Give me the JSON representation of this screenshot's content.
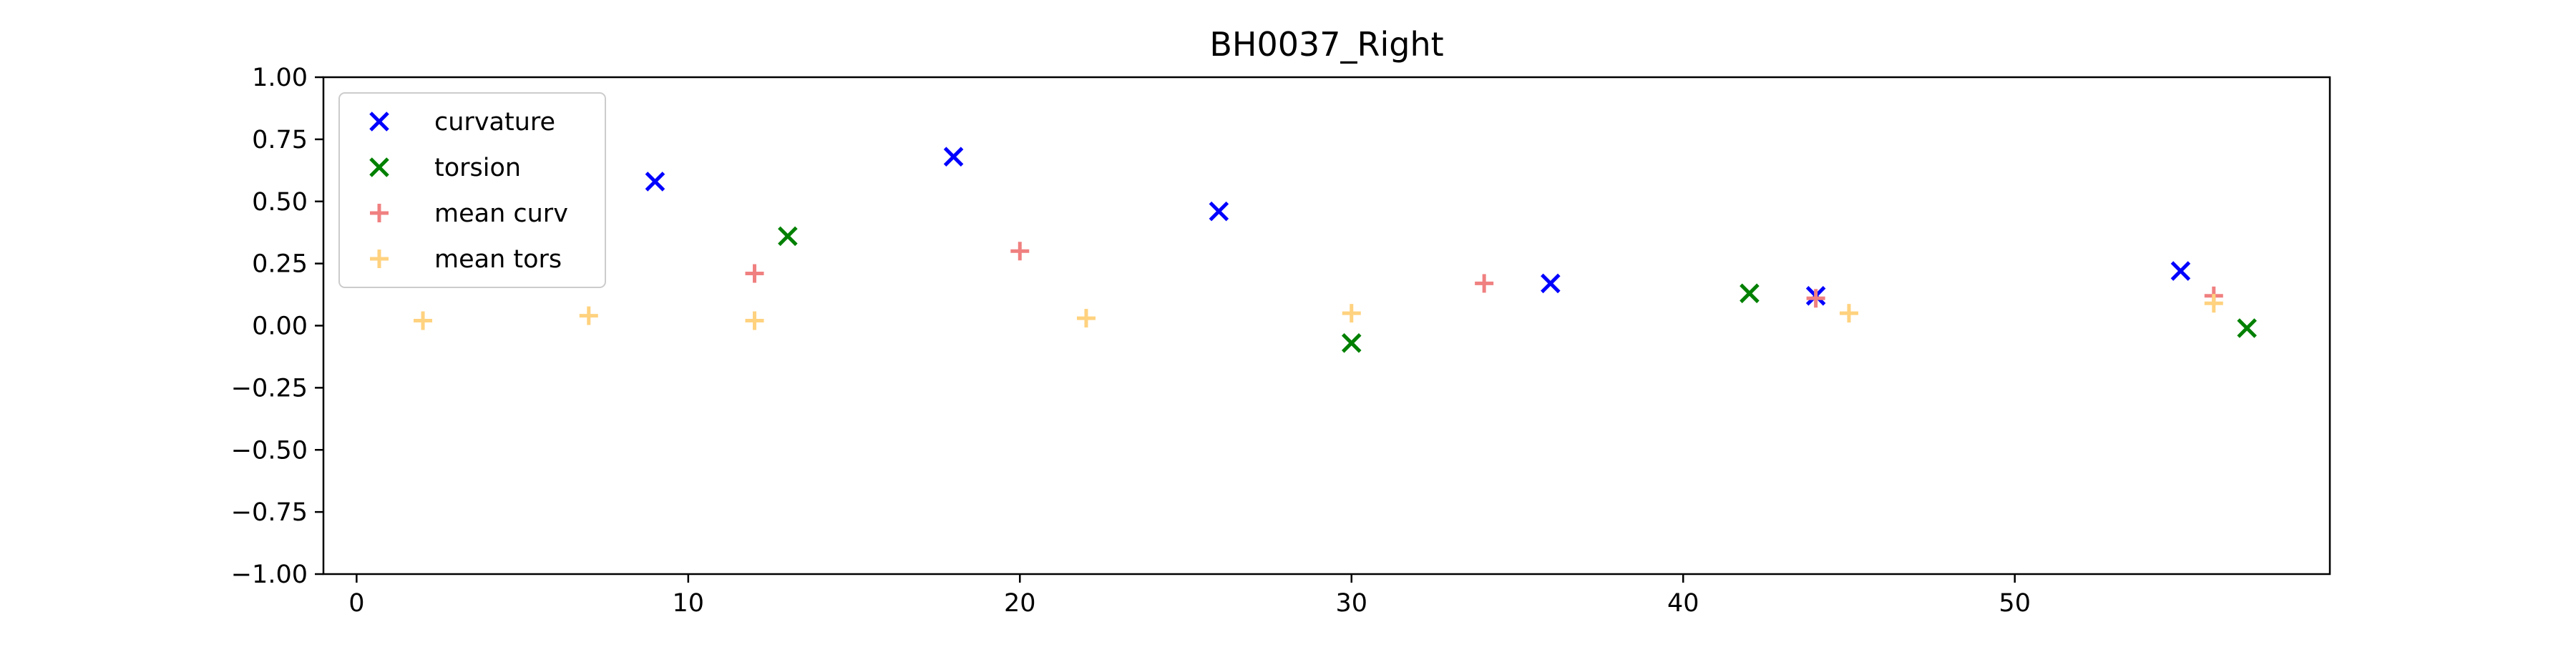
{
  "chart_data": {
    "type": "scatter",
    "title": "BH0037_Right",
    "xlabel": "",
    "ylabel": "",
    "xlim": [
      -1,
      59.5
    ],
    "ylim": [
      -1.0,
      1.0
    ],
    "x_ticks": [
      0,
      10,
      20,
      30,
      40,
      50
    ],
    "y_ticks": [
      -1.0,
      -0.75,
      -0.5,
      -0.25,
      0.0,
      0.25,
      0.5,
      0.75,
      1.0
    ],
    "x_tick_labels": [
      "0",
      "10",
      "20",
      "30",
      "40",
      "50"
    ],
    "y_tick_labels": [
      "−1.00",
      "−0.75",
      "−0.50",
      "−0.25",
      "0.00",
      "0.25",
      "0.50",
      "0.75",
      "1.00"
    ],
    "grid": false,
    "legend_position": "top-left",
    "series": [
      {
        "name": "curvature",
        "marker": "x",
        "color": "#0000ff",
        "points": [
          [
            9,
            0.58
          ],
          [
            18,
            0.68
          ],
          [
            26,
            0.46
          ],
          [
            36,
            0.17
          ],
          [
            44,
            0.12
          ],
          [
            55,
            0.22
          ]
        ]
      },
      {
        "name": "torsion",
        "marker": "x",
        "color": "#008000",
        "points": [
          [
            13,
            0.36
          ],
          [
            30,
            -0.07
          ],
          [
            42,
            0.13
          ],
          [
            57,
            -0.01
          ]
        ]
      },
      {
        "name": "mean curv",
        "marker": "+",
        "color": "#f08080",
        "points": [
          [
            12,
            0.21
          ],
          [
            20,
            0.3
          ],
          [
            34,
            0.17
          ],
          [
            44,
            0.11
          ],
          [
            56,
            0.12
          ]
        ]
      },
      {
        "name": "mean tors",
        "marker": "+",
        "color": "#ffd27f",
        "points": [
          [
            2,
            0.02
          ],
          [
            7,
            0.04
          ],
          [
            12,
            0.02
          ],
          [
            22,
            0.03
          ],
          [
            30,
            0.05
          ],
          [
            45,
            0.05
          ],
          [
            56,
            0.09
          ]
        ]
      }
    ]
  }
}
